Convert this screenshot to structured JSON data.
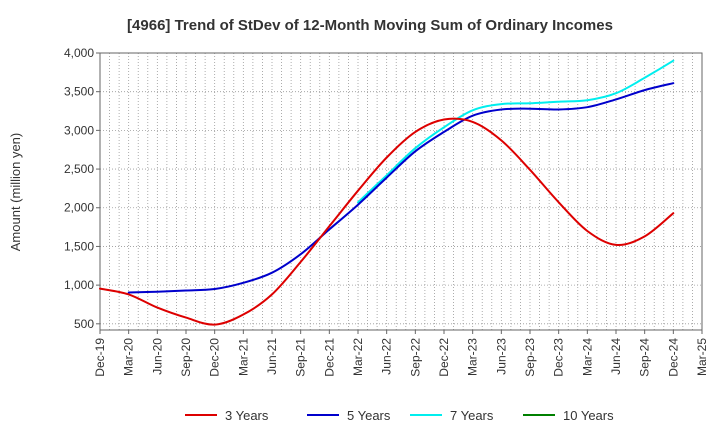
{
  "chart_data": {
    "type": "line",
    "title": "[4966]  Trend of StDev of 12-Month Moving Sum of Ordinary Incomes",
    "xlabel": "",
    "ylabel": "Amount (million yen)",
    "ylim": [
      420,
      4000
    ],
    "yticks": [
      500,
      1000,
      1500,
      2000,
      2500,
      3000,
      3500,
      4000
    ],
    "ytick_labels": [
      "500",
      "1,000",
      "1,500",
      "2,000",
      "2,500",
      "3,000",
      "3,500",
      "4,000"
    ],
    "x_categories": [
      "Dec-19",
      "Mar-20",
      "Jun-20",
      "Sep-20",
      "Dec-20",
      "Mar-21",
      "Jun-21",
      "Sep-21",
      "Dec-21",
      "Mar-22",
      "Jun-22",
      "Sep-22",
      "Dec-22",
      "Mar-23",
      "Jun-23",
      "Sep-23",
      "Dec-23",
      "Mar-24",
      "Jun-24",
      "Sep-24",
      "Dec-24",
      "Mar-25"
    ],
    "grid": true,
    "legend_position": "bottom",
    "series": [
      {
        "name": "3 Years",
        "color": "#dd0000",
        "values": [
          955,
          880,
          710,
          580,
          490,
          620,
          880,
          1300,
          1760,
          2220,
          2650,
          2980,
          3140,
          3110,
          2870,
          2490,
          2070,
          1700,
          1520,
          1630,
          1930,
          null
        ]
      },
      {
        "name": "5 Years",
        "color": "#0000cc",
        "values": [
          null,
          905,
          915,
          930,
          950,
          1030,
          1160,
          1400,
          1720,
          2040,
          2390,
          2730,
          2980,
          3190,
          3270,
          3280,
          3270,
          3300,
          3400,
          3520,
          3610,
          null
        ]
      },
      {
        "name": "7 Years",
        "color": "#00eeee",
        "values": [
          null,
          null,
          null,
          null,
          null,
          null,
          null,
          null,
          null,
          2070,
          2420,
          2770,
          3040,
          3260,
          3340,
          3350,
          3370,
          3390,
          3480,
          3680,
          3900,
          null
        ]
      },
      {
        "name": "10 Years",
        "color": "#008000",
        "values": [
          null,
          null,
          null,
          null,
          null,
          null,
          null,
          null,
          null,
          null,
          null,
          null,
          null,
          null,
          null,
          null,
          null,
          null,
          null,
          null,
          null,
          null
        ]
      }
    ]
  }
}
